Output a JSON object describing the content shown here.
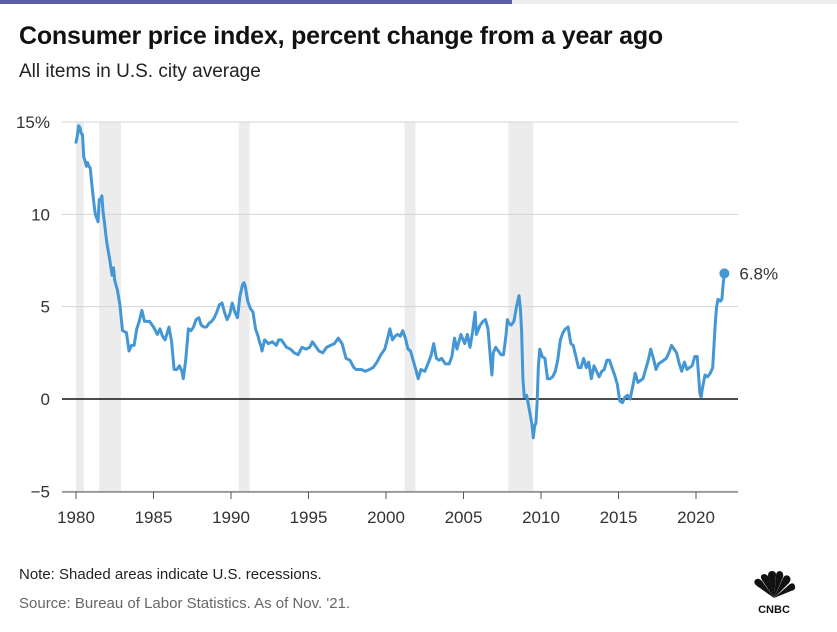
{
  "chart_data": {
    "type": "line",
    "title": "Consumer price index, percent change from a year ago",
    "subtitle": "All items in U.S. city average",
    "xlabel": "",
    "ylabel": "",
    "xlim": [
      1980,
      2021.83
    ],
    "ylim": [
      -5,
      15
    ],
    "x_ticks": [
      "1980",
      "1985",
      "1990",
      "1995",
      "2000",
      "2005",
      "2010",
      "2015",
      "2020"
    ],
    "y_ticks": [
      "15%",
      "10",
      "5",
      "0",
      "−5"
    ],
    "grid": true,
    "zero_line": true,
    "line_color": "#4497d4",
    "recession_color": "#ececec",
    "recessions": [
      [
        1980.0,
        1980.5
      ],
      [
        1981.5,
        1982.9
      ],
      [
        1990.5,
        1991.2
      ],
      [
        2001.2,
        2001.9
      ],
      [
        2007.9,
        2009.5
      ]
    ],
    "end_label": "6.8%",
    "series": [
      {
        "values": [
          [
            1980.0,
            13.9
          ],
          [
            1980.08,
            14.2
          ],
          [
            1980.17,
            14.8
          ],
          [
            1980.25,
            14.7
          ],
          [
            1980.33,
            14.4
          ],
          [
            1980.42,
            14.3
          ],
          [
            1980.5,
            13.1
          ],
          [
            1980.58,
            12.9
          ],
          [
            1980.67,
            12.6
          ],
          [
            1980.75,
            12.8
          ],
          [
            1980.83,
            12.6
          ],
          [
            1980.92,
            12.5
          ],
          [
            1981.0,
            11.8
          ],
          [
            1981.17,
            10.5
          ],
          [
            1981.25,
            10.0
          ],
          [
            1981.33,
            9.8
          ],
          [
            1981.42,
            9.6
          ],
          [
            1981.5,
            10.8
          ],
          [
            1981.58,
            10.8
          ],
          [
            1981.67,
            11.0
          ],
          [
            1981.75,
            10.1
          ],
          [
            1981.83,
            9.6
          ],
          [
            1981.92,
            8.9
          ],
          [
            1982.0,
            8.4
          ],
          [
            1982.17,
            7.6
          ],
          [
            1982.33,
            6.7
          ],
          [
            1982.42,
            7.1
          ],
          [
            1982.5,
            6.4
          ],
          [
            1982.67,
            5.9
          ],
          [
            1982.83,
            5.1
          ],
          [
            1983.0,
            3.7
          ],
          [
            1983.25,
            3.6
          ],
          [
            1983.42,
            2.6
          ],
          [
            1983.58,
            2.9
          ],
          [
            1983.75,
            2.9
          ],
          [
            1983.92,
            3.8
          ],
          [
            1984.08,
            4.2
          ],
          [
            1984.25,
            4.8
          ],
          [
            1984.42,
            4.2
          ],
          [
            1984.58,
            4.2
          ],
          [
            1984.75,
            4.2
          ],
          [
            1985.0,
            3.9
          ],
          [
            1985.25,
            3.5
          ],
          [
            1985.42,
            3.8
          ],
          [
            1985.58,
            3.4
          ],
          [
            1985.75,
            3.2
          ],
          [
            1986.0,
            3.9
          ],
          [
            1986.17,
            3.1
          ],
          [
            1986.33,
            1.6
          ],
          [
            1986.5,
            1.6
          ],
          [
            1986.67,
            1.8
          ],
          [
            1986.83,
            1.5
          ],
          [
            1986.92,
            1.1
          ],
          [
            1987.08,
            2.1
          ],
          [
            1987.25,
            3.8
          ],
          [
            1987.42,
            3.7
          ],
          [
            1987.58,
            3.9
          ],
          [
            1987.75,
            4.3
          ],
          [
            1987.92,
            4.4
          ],
          [
            1988.08,
            4.0
          ],
          [
            1988.25,
            3.9
          ],
          [
            1988.42,
            3.9
          ],
          [
            1988.58,
            4.1
          ],
          [
            1988.75,
            4.2
          ],
          [
            1988.92,
            4.4
          ],
          [
            1989.08,
            4.7
          ],
          [
            1989.25,
            5.1
          ],
          [
            1989.42,
            5.2
          ],
          [
            1989.58,
            4.7
          ],
          [
            1989.75,
            4.3
          ],
          [
            1989.92,
            4.6
          ],
          [
            1990.08,
            5.2
          ],
          [
            1990.25,
            4.7
          ],
          [
            1990.42,
            4.4
          ],
          [
            1990.58,
            5.6
          ],
          [
            1990.75,
            6.2
          ],
          [
            1990.83,
            6.3
          ],
          [
            1990.92,
            6.1
          ],
          [
            1991.08,
            5.3
          ],
          [
            1991.25,
            4.9
          ],
          [
            1991.42,
            4.7
          ],
          [
            1991.58,
            3.8
          ],
          [
            1991.75,
            3.4
          ],
          [
            1991.83,
            3.1
          ],
          [
            1991.92,
            2.9
          ],
          [
            1992.0,
            2.6
          ],
          [
            1992.17,
            3.2
          ],
          [
            1992.42,
            3.0
          ],
          [
            1992.67,
            3.1
          ],
          [
            1992.92,
            2.9
          ],
          [
            1993.08,
            3.2
          ],
          [
            1993.25,
            3.2
          ],
          [
            1993.42,
            3.0
          ],
          [
            1993.58,
            2.8
          ],
          [
            1993.83,
            2.7
          ],
          [
            1994.08,
            2.5
          ],
          [
            1994.33,
            2.4
          ],
          [
            1994.58,
            2.8
          ],
          [
            1994.83,
            2.7
          ],
          [
            1995.08,
            2.8
          ],
          [
            1995.25,
            3.1
          ],
          [
            1995.5,
            2.8
          ],
          [
            1995.67,
            2.6
          ],
          [
            1995.92,
            2.5
          ],
          [
            1996.17,
            2.8
          ],
          [
            1996.42,
            2.9
          ],
          [
            1996.67,
            3.0
          ],
          [
            1996.92,
            3.3
          ],
          [
            1997.17,
            3.0
          ],
          [
            1997.42,
            2.2
          ],
          [
            1997.67,
            2.1
          ],
          [
            1997.92,
            1.7
          ],
          [
            1998.08,
            1.6
          ],
          [
            1998.42,
            1.6
          ],
          [
            1998.67,
            1.5
          ],
          [
            1998.92,
            1.6
          ],
          [
            1999.17,
            1.7
          ],
          [
            1999.42,
            2.0
          ],
          [
            1999.67,
            2.4
          ],
          [
            1999.92,
            2.7
          ],
          [
            2000.08,
            3.2
          ],
          [
            2000.25,
            3.8
          ],
          [
            2000.42,
            3.2
          ],
          [
            2000.58,
            3.4
          ],
          [
            2000.75,
            3.5
          ],
          [
            2000.92,
            3.4
          ],
          [
            2001.08,
            3.7
          ],
          [
            2001.25,
            3.3
          ],
          [
            2001.42,
            2.7
          ],
          [
            2001.58,
            2.6
          ],
          [
            2001.75,
            2.1
          ],
          [
            2001.92,
            1.6
          ],
          [
            2002.08,
            1.1
          ],
          [
            2002.25,
            1.6
          ],
          [
            2002.5,
            1.5
          ],
          [
            2002.75,
            2.0
          ],
          [
            2002.92,
            2.4
          ],
          [
            2003.08,
            3.0
          ],
          [
            2003.25,
            2.2
          ],
          [
            2003.42,
            2.1
          ],
          [
            2003.58,
            2.2
          ],
          [
            2003.83,
            1.9
          ],
          [
            2004.08,
            1.9
          ],
          [
            2004.25,
            2.3
          ],
          [
            2004.42,
            3.3
          ],
          [
            2004.58,
            2.7
          ],
          [
            2004.83,
            3.5
          ],
          [
            2005.08,
            3.0
          ],
          [
            2005.25,
            3.5
          ],
          [
            2005.42,
            2.8
          ],
          [
            2005.58,
            3.6
          ],
          [
            2005.75,
            4.7
          ],
          [
            2005.83,
            3.5
          ],
          [
            2006.08,
            4.0
          ],
          [
            2006.25,
            4.2
          ],
          [
            2006.42,
            4.3
          ],
          [
            2006.58,
            3.8
          ],
          [
            2006.75,
            2.1
          ],
          [
            2006.83,
            1.3
          ],
          [
            2006.92,
            2.5
          ],
          [
            2007.08,
            2.8
          ],
          [
            2007.25,
            2.6
          ],
          [
            2007.42,
            2.4
          ],
          [
            2007.58,
            2.4
          ],
          [
            2007.75,
            3.5
          ],
          [
            2007.83,
            4.3
          ],
          [
            2007.92,
            4.1
          ],
          [
            2008.08,
            4.0
          ],
          [
            2008.25,
            4.2
          ],
          [
            2008.42,
            5.0
          ],
          [
            2008.58,
            5.6
          ],
          [
            2008.67,
            4.9
          ],
          [
            2008.75,
            3.7
          ],
          [
            2008.83,
            1.1
          ],
          [
            2008.92,
            0.1
          ],
          [
            2009.08,
            0.2
          ],
          [
            2009.25,
            -0.6
          ],
          [
            2009.42,
            -1.4
          ],
          [
            2009.5,
            -2.1
          ],
          [
            2009.58,
            -1.5
          ],
          [
            2009.67,
            -1.3
          ],
          [
            2009.75,
            -0.2
          ],
          [
            2009.83,
            1.8
          ],
          [
            2009.92,
            2.7
          ],
          [
            2010.08,
            2.3
          ],
          [
            2010.25,
            2.2
          ],
          [
            2010.42,
            1.1
          ],
          [
            2010.58,
            1.1
          ],
          [
            2010.75,
            1.2
          ],
          [
            2010.92,
            1.5
          ],
          [
            2011.08,
            2.1
          ],
          [
            2011.25,
            3.2
          ],
          [
            2011.42,
            3.6
          ],
          [
            2011.58,
            3.8
          ],
          [
            2011.75,
            3.9
          ],
          [
            2011.92,
            3.0
          ],
          [
            2012.08,
            2.9
          ],
          [
            2012.25,
            2.3
          ],
          [
            2012.42,
            1.7
          ],
          [
            2012.58,
            1.7
          ],
          [
            2012.75,
            2.2
          ],
          [
            2012.92,
            1.7
          ],
          [
            2013.08,
            2.0
          ],
          [
            2013.25,
            1.1
          ],
          [
            2013.42,
            1.8
          ],
          [
            2013.58,
            1.5
          ],
          [
            2013.75,
            1.2
          ],
          [
            2013.92,
            1.5
          ],
          [
            2014.08,
            1.6
          ],
          [
            2014.25,
            2.1
          ],
          [
            2014.42,
            2.1
          ],
          [
            2014.58,
            1.7
          ],
          [
            2014.75,
            1.3
          ],
          [
            2014.92,
            0.8
          ],
          [
            2015.08,
            -0.1
          ],
          [
            2015.25,
            -0.2
          ],
          [
            2015.42,
            0.1
          ],
          [
            2015.58,
            0.2
          ],
          [
            2015.75,
            0.0
          ],
          [
            2015.92,
            0.7
          ],
          [
            2016.08,
            1.4
          ],
          [
            2016.25,
            0.9
          ],
          [
            2016.42,
            1.0
          ],
          [
            2016.58,
            1.1
          ],
          [
            2016.75,
            1.6
          ],
          [
            2016.92,
            2.1
          ],
          [
            2017.08,
            2.7
          ],
          [
            2017.25,
            2.2
          ],
          [
            2017.42,
            1.6
          ],
          [
            2017.58,
            1.9
          ],
          [
            2017.75,
            2.0
          ],
          [
            2017.92,
            2.1
          ],
          [
            2018.08,
            2.2
          ],
          [
            2018.25,
            2.5
          ],
          [
            2018.42,
            2.9
          ],
          [
            2018.58,
            2.7
          ],
          [
            2018.75,
            2.5
          ],
          [
            2018.92,
            1.9
          ],
          [
            2019.08,
            1.5
          ],
          [
            2019.25,
            2.0
          ],
          [
            2019.42,
            1.6
          ],
          [
            2019.58,
            1.7
          ],
          [
            2019.75,
            1.8
          ],
          [
            2019.92,
            2.3
          ],
          [
            2020.08,
            2.3
          ],
          [
            2020.25,
            0.3
          ],
          [
            2020.33,
            0.1
          ],
          [
            2020.42,
            0.6
          ],
          [
            2020.58,
            1.3
          ],
          [
            2020.75,
            1.2
          ],
          [
            2020.92,
            1.4
          ],
          [
            2021.08,
            1.7
          ],
          [
            2021.25,
            4.2
          ],
          [
            2021.33,
            5.0
          ],
          [
            2021.42,
            5.4
          ],
          [
            2021.58,
            5.3
          ],
          [
            2021.67,
            5.4
          ],
          [
            2021.75,
            6.2
          ],
          [
            2021.83,
            6.8
          ]
        ]
      }
    ]
  },
  "footer": {
    "note": "Note: Shaded areas indicate U.S. recessions.",
    "source": "Source: Bureau of Labor Statistics. As of Nov. '21.",
    "logo_text": "CNBC"
  }
}
